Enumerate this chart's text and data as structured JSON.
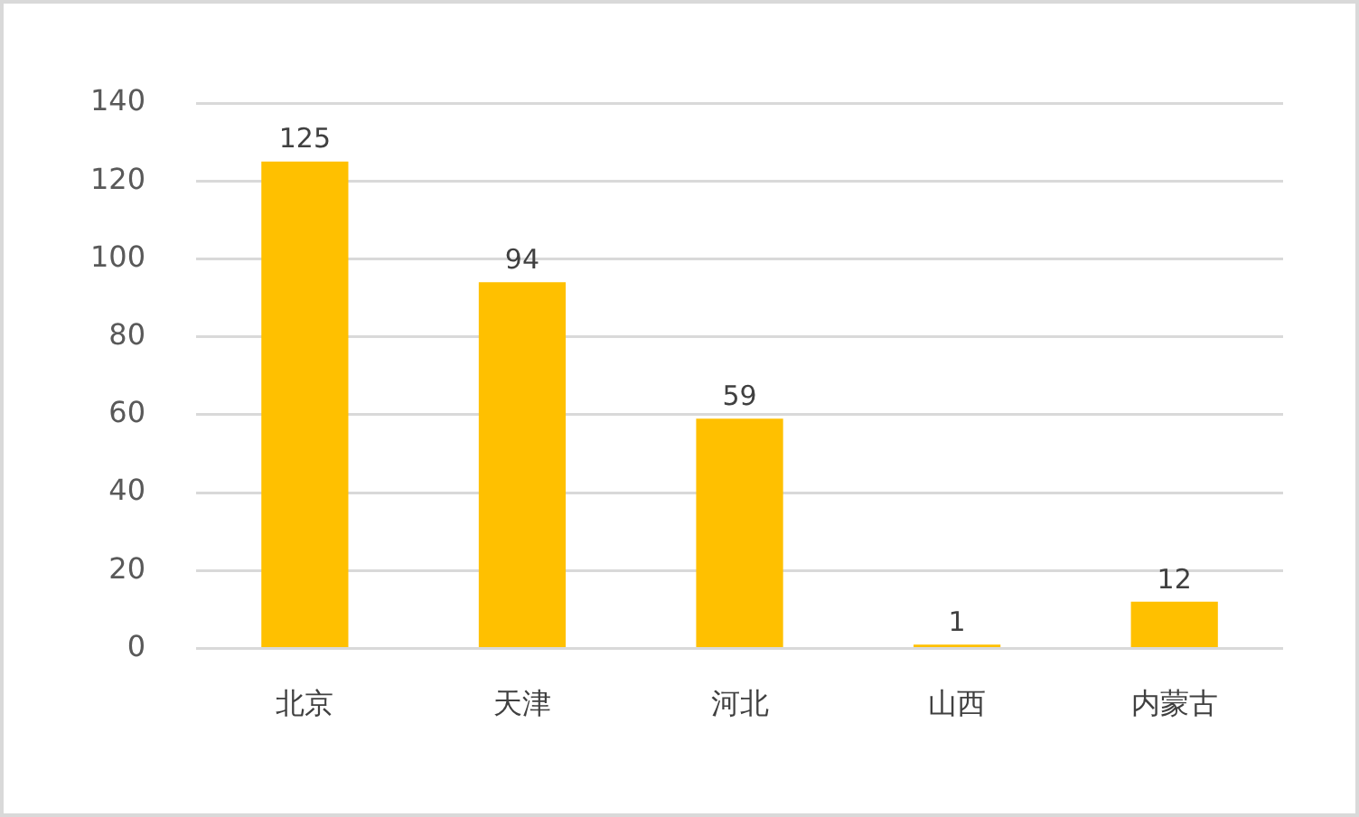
{
  "chart_data": {
    "type": "bar",
    "categories": [
      "北京",
      "天津",
      "河北",
      "山西",
      "内蒙古"
    ],
    "values": [
      125,
      94,
      59,
      1,
      12
    ],
    "color": "#ffc000",
    "ylim": [
      0,
      140
    ],
    "yticks": [
      0,
      20,
      40,
      60,
      80,
      100,
      120,
      140
    ],
    "grid": "y",
    "data_labels": true
  }
}
